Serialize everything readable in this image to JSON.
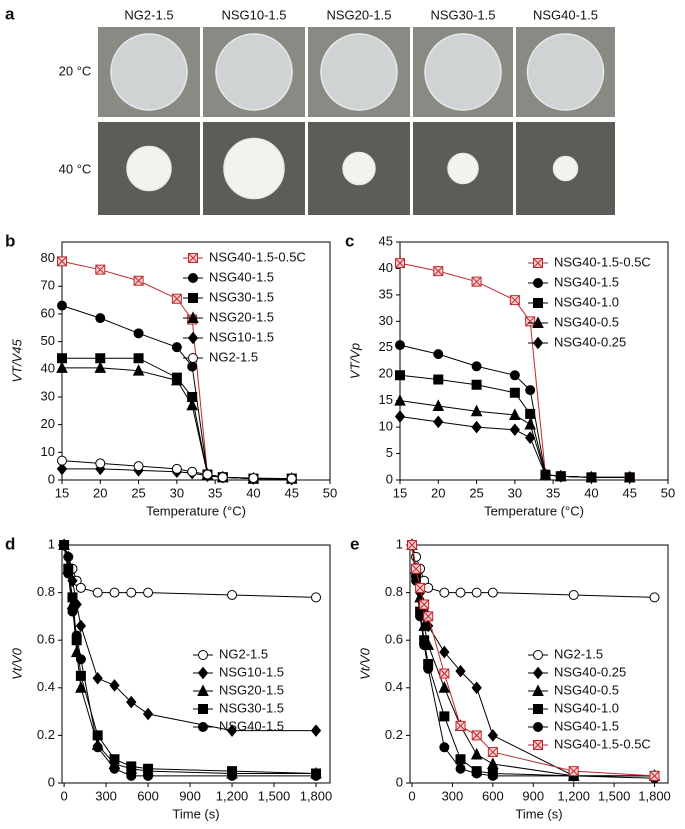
{
  "photos": {
    "panel": "a",
    "columns": [
      "NG2-1.5",
      "NSG10-1.5",
      "NSG20-1.5",
      "NSG30-1.5",
      "NSG40-1.5"
    ],
    "rows": [
      "20 °C",
      "40 °C"
    ]
  },
  "chart_data": [
    {
      "type": "line",
      "panel": "b",
      "x_label": "Temperature (°C)",
      "y_label": "VT/V45",
      "x": [
        15,
        20,
        25,
        30,
        32,
        34,
        36,
        40,
        45
      ],
      "xlim": [
        15,
        50
      ],
      "xticks": [
        15,
        20,
        25,
        30,
        35,
        40,
        45,
        50
      ],
      "ylim": [
        0,
        86
      ],
      "yticks": [
        0,
        10,
        20,
        30,
        40,
        50,
        60,
        70,
        80
      ],
      "series": [
        {
          "name": "NSG40-1.5-0.5C",
          "color": "#c0272d",
          "marker": "x-square",
          "values": [
            79,
            76,
            72,
            65.5,
            58,
            2,
            1,
            0.5,
            0.5
          ]
        },
        {
          "name": "NSG40-1.5",
          "color": "#000000",
          "marker": "circle",
          "values": [
            63,
            58.5,
            53,
            48,
            41,
            2,
            1,
            0.5,
            0.5
          ]
        },
        {
          "name": "NSG30-1.5",
          "color": "#000000",
          "marker": "square",
          "values": [
            44,
            44,
            44,
            37,
            30,
            2,
            1,
            0.5,
            0.5
          ]
        },
        {
          "name": "NSG20-1.5",
          "color": "#000000",
          "marker": "triangle",
          "values": [
            40.5,
            40.5,
            39.5,
            36,
            27,
            2,
            1,
            0.5,
            0.5
          ]
        },
        {
          "name": "NSG10-1.5",
          "color": "#000000",
          "marker": "diamond",
          "values": [
            4,
            4,
            3.5,
            3,
            2.5,
            1.5,
            1,
            0.5,
            0.3
          ]
        },
        {
          "name": "NG2-1.5",
          "color": "#000000",
          "marker": "circle-open",
          "values": [
            7,
            6,
            5,
            4,
            3,
            2,
            1,
            0.7,
            0.5
          ]
        }
      ]
    },
    {
      "type": "line",
      "panel": "c",
      "x_label": "Temperature (°C)",
      "y_label": "VT/Vp",
      "x": [
        15,
        20,
        25,
        30,
        32,
        34,
        36,
        40,
        45
      ],
      "xlim": [
        15,
        50
      ],
      "xticks": [
        15,
        20,
        25,
        30,
        35,
        40,
        45,
        50
      ],
      "ylim": [
        0,
        45
      ],
      "yticks": [
        0,
        5,
        10,
        15,
        20,
        25,
        30,
        35,
        40,
        45
      ],
      "series": [
        {
          "name": "NSG40-1.5-0.5C",
          "color": "#c0272d",
          "marker": "x-square",
          "values": [
            41,
            39.5,
            37.5,
            34,
            30,
            1,
            0.7,
            0.5,
            0.5
          ]
        },
        {
          "name": "NSG40-1.5",
          "color": "#000000",
          "marker": "circle",
          "values": [
            25.5,
            23.8,
            21.5,
            19.8,
            17,
            1,
            0.7,
            0.5,
            0.5
          ]
        },
        {
          "name": "NSG40-1.0",
          "color": "#000000",
          "marker": "square",
          "values": [
            19.8,
            19,
            18,
            16.5,
            12.5,
            1,
            0.7,
            0.5,
            0.5
          ]
        },
        {
          "name": "NSG40-0.5",
          "color": "#000000",
          "marker": "triangle",
          "values": [
            15,
            14,
            13,
            12.3,
            10.5,
            1,
            0.7,
            0.5,
            0.5
          ]
        },
        {
          "name": "NSG40-0.25",
          "color": "#000000",
          "marker": "diamond",
          "values": [
            12,
            11,
            10,
            9.5,
            8,
            1,
            0.7,
            0.5,
            0.5
          ]
        }
      ]
    },
    {
      "type": "line",
      "panel": "d",
      "x_label": "Time (s)",
      "y_label": "Vt/V0",
      "x": [
        0,
        30,
        60,
        90,
        120,
        240,
        360,
        480,
        600,
        1200,
        1800
      ],
      "xlim": [
        -15,
        1900
      ],
      "xticks": [
        0,
        300,
        600,
        900,
        {
          "value": 1200,
          "label": "1,200"
        },
        {
          "value": 1500,
          "label": "1,500"
        },
        {
          "value": 1800,
          "label": "1,800"
        }
      ],
      "ylim": [
        0,
        1
      ],
      "yticks": [
        0,
        0.2,
        0.4,
        0.6,
        0.8,
        1
      ],
      "series": [
        {
          "name": "NG2-1.5",
          "color": "#000000",
          "marker": "circle-open",
          "values": [
            1,
            0.95,
            0.9,
            0.85,
            0.82,
            0.8,
            0.8,
            0.8,
            0.8,
            0.79,
            0.78
          ]
        },
        {
          "name": "NSG10-1.5",
          "color": "#000000",
          "marker": "diamond",
          "values": [
            1,
            0.95,
            0.85,
            0.75,
            0.66,
            0.44,
            0.41,
            0.34,
            0.29,
            0.22,
            0.22
          ]
        },
        {
          "name": "NSG20-1.5",
          "color": "#000000",
          "marker": "triangle",
          "values": [
            1,
            0.9,
            0.75,
            0.55,
            0.4,
            0.16,
            0.08,
            0.06,
            0.05,
            0.04,
            0.04
          ]
        },
        {
          "name": "NSG30-1.5",
          "color": "#000000",
          "marker": "square",
          "values": [
            1,
            0.9,
            0.78,
            0.6,
            0.45,
            0.2,
            0.1,
            0.07,
            0.06,
            0.05,
            0.04
          ]
        },
        {
          "name": "NSG40-1.5",
          "color": "#000000",
          "marker": "circle",
          "values": [
            1,
            0.88,
            0.72,
            0.62,
            0.52,
            0.15,
            0.06,
            0.03,
            0.03,
            0.03,
            0.03
          ]
        }
      ]
    },
    {
      "type": "line",
      "panel": "e",
      "x_label": "Time (s)",
      "y_label": "Vt/V0",
      "x": [
        0,
        30,
        60,
        90,
        120,
        240,
        360,
        480,
        600,
        1200,
        1800
      ],
      "xlim": [
        -15,
        1900
      ],
      "xticks": [
        0,
        300,
        600,
        900,
        {
          "value": 1200,
          "label": "1,200"
        },
        {
          "value": 1500,
          "label": "1,500"
        },
        {
          "value": 1800,
          "label": "1,800"
        }
      ],
      "ylim": [
        0,
        1
      ],
      "yticks": [
        0,
        0.2,
        0.4,
        0.6,
        0.8,
        1
      ],
      "series": [
        {
          "name": "NG2-1.5",
          "color": "#000000",
          "marker": "circle-open",
          "values": [
            1,
            0.95,
            0.9,
            0.85,
            0.82,
            0.8,
            0.8,
            0.8,
            0.8,
            0.79,
            0.78
          ]
        },
        {
          "name": "NSG40-0.25",
          "color": "#000000",
          "marker": "diamond",
          "values": [
            1,
            0.9,
            0.8,
            0.72,
            0.66,
            0.55,
            0.47,
            0.4,
            0.2,
            0.03,
            0.03
          ]
        },
        {
          "name": "NSG40-0.5",
          "color": "#000000",
          "marker": "triangle",
          "values": [
            1,
            0.9,
            0.78,
            0.66,
            0.58,
            0.4,
            0.24,
            0.12,
            0.08,
            0.03,
            0.03
          ]
        },
        {
          "name": "NSG40-1.0",
          "color": "#000000",
          "marker": "square",
          "values": [
            1,
            0.88,
            0.72,
            0.6,
            0.5,
            0.28,
            0.1,
            0.05,
            0.04,
            0.03,
            0.03
          ]
        },
        {
          "name": "NSG40-1.5",
          "color": "#000000",
          "marker": "circle",
          "values": [
            1,
            0.85,
            0.7,
            0.58,
            0.48,
            0.15,
            0.06,
            0.04,
            0.03,
            0.03,
            0.02
          ]
        },
        {
          "name": "NSG40-1.5-0.5C",
          "color": "#c0272d",
          "marker": "x-square",
          "values": [
            1,
            0.9,
            0.82,
            0.75,
            0.7,
            0.46,
            0.24,
            0.2,
            0.13,
            0.05,
            0.03
          ]
        }
      ]
    }
  ]
}
